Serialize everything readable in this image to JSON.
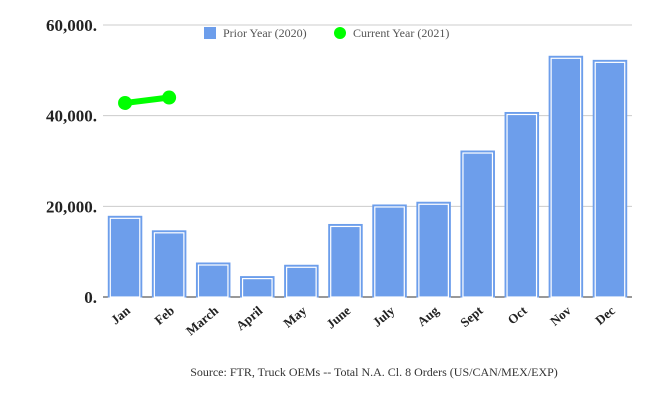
{
  "chart_data": {
    "type": "bar",
    "categories": [
      "Jan",
      "Feb",
      "March",
      "April",
      "May",
      "June",
      "July",
      "Aug",
      "Sept",
      "Oct",
      "Nov",
      "Dec"
    ],
    "series": [
      {
        "name": "Prior Year (2020)",
        "type": "bar",
        "color": "#6d9eeb",
        "values": [
          17800,
          14600,
          7500,
          4500,
          7000,
          16000,
          20300,
          20900,
          32200,
          40700,
          53100,
          52200
        ]
      },
      {
        "name": "Current Year (2021)",
        "type": "line",
        "color": "#00ff00",
        "values": [
          42800,
          44000,
          null,
          null,
          null,
          null,
          null,
          null,
          null,
          null,
          null,
          null
        ]
      }
    ],
    "y_ticks": [
      "0.",
      "20,000.",
      "40,000.",
      "60,000."
    ],
    "ylim": [
      0,
      60000
    ],
    "grid": true,
    "legend_position": "top",
    "source": "Source: FTR, Truck OEMs -- Total N.A. Cl. 8 Orders (US/CAN/MEX/EXP)"
  }
}
